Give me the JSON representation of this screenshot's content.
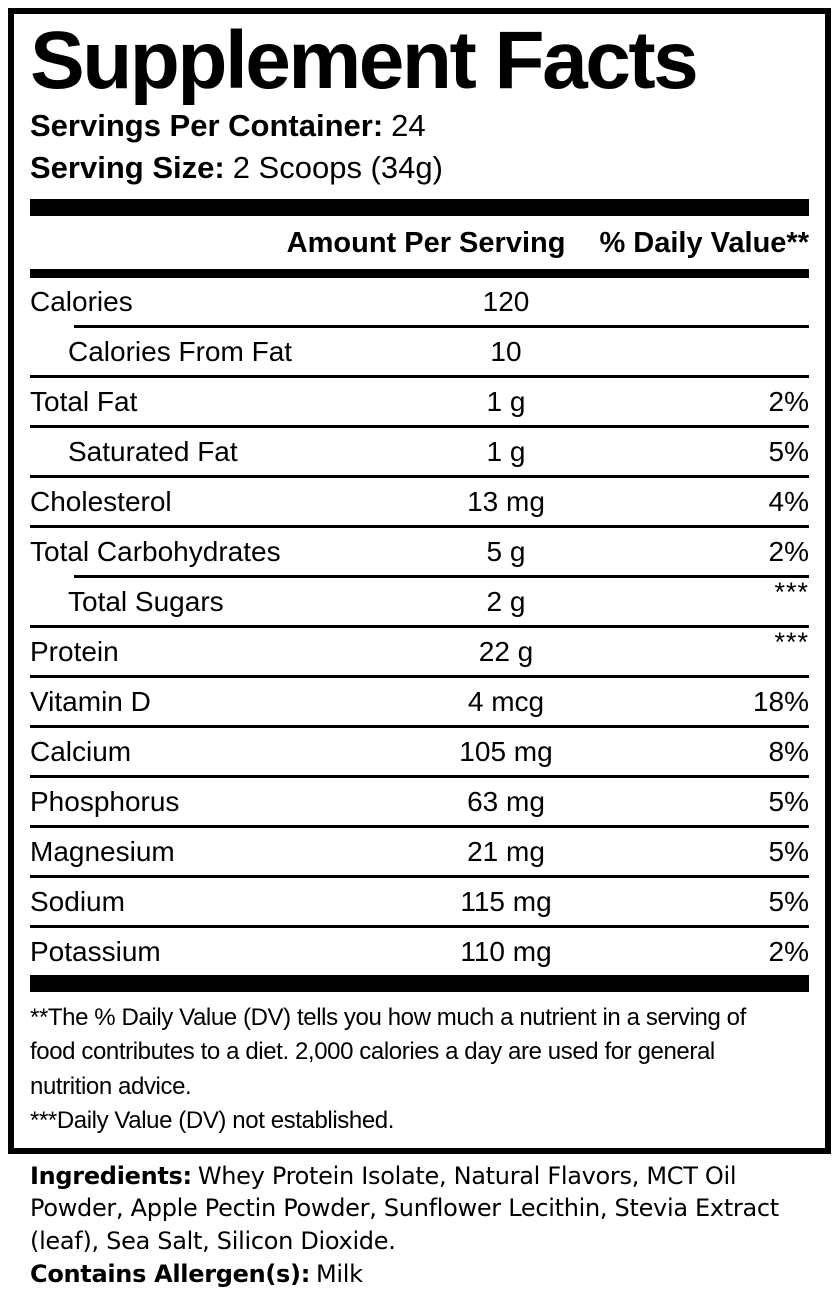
{
  "colors": {
    "ink": "#000000",
    "background": "#ffffff"
  },
  "panel": {
    "title": "Supplement Facts",
    "servings_per_container_label": "Servings Per Container:",
    "servings_per_container_value": "24",
    "serving_size_label": "Serving Size:",
    "serving_size_value": "2 Scoops (34g)",
    "columns": {
      "amount": "Amount Per Serving",
      "daily_value": "% Daily Value**"
    },
    "rows": [
      {
        "name": "Calories",
        "amount": "120",
        "dv": "",
        "indent": false,
        "sep": "indented",
        "dv_raised": false
      },
      {
        "name": "Calories From Fat",
        "amount": "10",
        "dv": "",
        "indent": true,
        "sep": "full",
        "dv_raised": false
      },
      {
        "name": "Total Fat",
        "amount": "1 g",
        "dv": "2%",
        "indent": false,
        "sep": "full",
        "dv_raised": false
      },
      {
        "name": "Saturated Fat",
        "amount": "1 g",
        "dv": "5%",
        "indent": true,
        "sep": "full",
        "dv_raised": false
      },
      {
        "name": "Cholesterol",
        "amount": "13 mg",
        "dv": "4%",
        "indent": false,
        "sep": "full",
        "dv_raised": false
      },
      {
        "name": "Total Carbohydrates",
        "amount": "5 g",
        "dv": "2%",
        "indent": false,
        "sep": "indented",
        "dv_raised": false
      },
      {
        "name": "Total Sugars",
        "amount": "2 g",
        "dv": "***",
        "indent": true,
        "sep": "full",
        "dv_raised": true
      },
      {
        "name": "Protein",
        "amount": "22 g",
        "dv": "***",
        "indent": false,
        "sep": "full",
        "dv_raised": true
      },
      {
        "name": "Vitamin D",
        "amount": "4 mcg",
        "dv": "18%",
        "indent": false,
        "sep": "full",
        "dv_raised": false
      },
      {
        "name": "Calcium",
        "amount": "105 mg",
        "dv": "8%",
        "indent": false,
        "sep": "full",
        "dv_raised": false
      },
      {
        "name": "Phosphorus",
        "amount": "63 mg",
        "dv": "5%",
        "indent": false,
        "sep": "full",
        "dv_raised": false
      },
      {
        "name": "Magnesium",
        "amount": "21 mg",
        "dv": "5%",
        "indent": false,
        "sep": "full",
        "dv_raised": false
      },
      {
        "name": "Sodium",
        "amount": "115 mg",
        "dv": "5%",
        "indent": false,
        "sep": "full",
        "dv_raised": false
      },
      {
        "name": "Potassium",
        "amount": "110 mg",
        "dv": "2%",
        "indent": false,
        "sep": "none",
        "dv_raised": false
      }
    ],
    "footnotes": [
      "**The % Daily Value (DV) tells you how much a nutrient in a serving of\nfood contributes to a diet. 2,000 calories a day are used for general\nnutrition advice.",
      "***Daily Value (DV) not established."
    ]
  },
  "ingredients": {
    "label": "Ingredients:",
    "text": "Whey Protein Isolate, Natural Flavors, MCT Oil Powder, Apple Pectin Powder, Sunflower Lecithin, Stevia Extract (leaf), Sea Salt, Silicon Dioxide.",
    "allergen_label": "Contains Allergen(s):",
    "allergen_value": "Milk"
  }
}
